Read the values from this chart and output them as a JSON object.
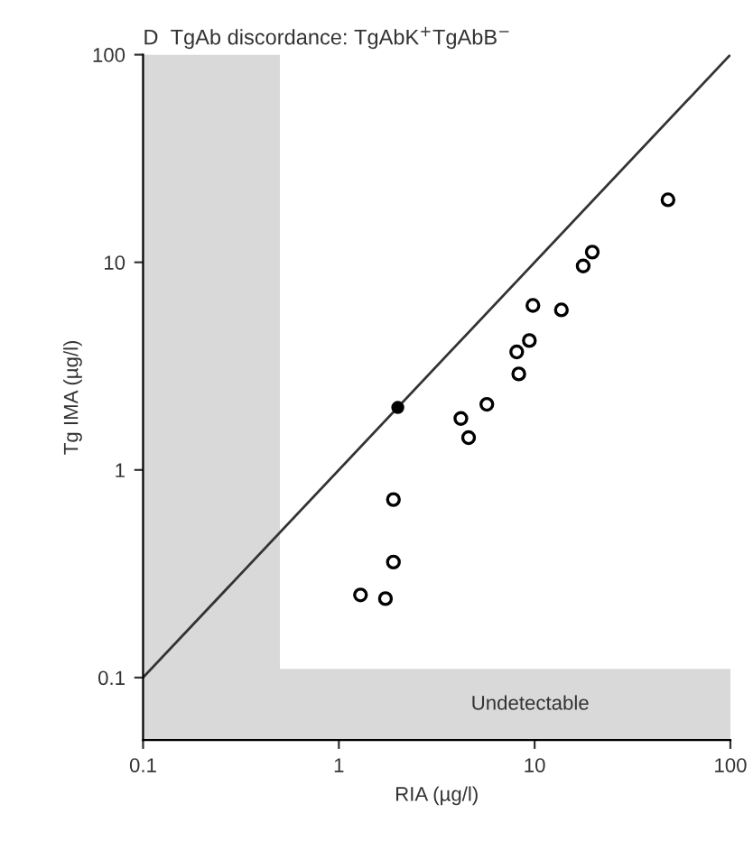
{
  "chart_data": {
    "type": "scatter",
    "title": "D  TgAb discordance: TgAbK$^{+}$TgAbB$^{−}$",
    "xlabel": "RIA (µg/l)",
    "ylabel": "Tg IMA (µg/l)",
    "log": "xy",
    "xlim": [
      0.1,
      100
    ],
    "ylim": [
      0.05,
      100
    ],
    "xticks": [
      0.1,
      1,
      10,
      100
    ],
    "yticks": [
      0.1,
      1,
      10,
      100
    ],
    "grid": false,
    "legend": false,
    "bands": [
      {
        "axis": "x",
        "from": 0.1,
        "to": 0.5,
        "label": null,
        "color": "#d9d9d9"
      },
      {
        "axis": "y",
        "from": 0.05,
        "to": 0.11,
        "label": "Undetectable",
        "color": "#d9d9d9"
      }
    ],
    "series": [
      {
        "type": "line",
        "color": "#333333",
        "x": [
          0.1,
          100
        ],
        "values": [
          0.1,
          100
        ]
      },
      {
        "marker": "circle",
        "color": "#000000",
        "x": [
          48,
          19.7,
          17.7,
          9.8,
          13.7,
          9.4,
          8.1,
          8.3,
          5.7,
          4.2,
          4.6,
          1.9,
          1.9,
          1.29,
          1.73
        ],
        "values": [
          20,
          11.2,
          9.6,
          6.2,
          5.9,
          4.2,
          3.7,
          2.9,
          2.07,
          1.77,
          1.43,
          0.72,
          0.36,
          0.25,
          0.24
        ]
      },
      {
        "marker": "circle",
        "color": "#000000",
        "x": [
          2
        ],
        "values": [
          2
        ]
      }
    ]
  }
}
